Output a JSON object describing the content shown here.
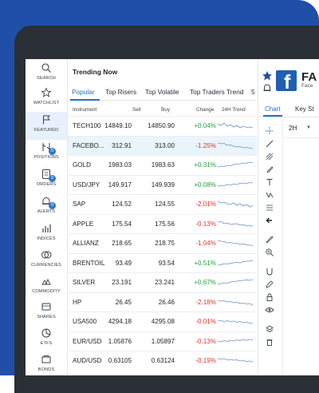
{
  "sidebar": {
    "items": [
      {
        "label": "SEARCH",
        "icon": "search-icon"
      },
      {
        "label": "WATCHLIST",
        "icon": "star-icon"
      },
      {
        "label": "FEATURED",
        "icon": "flag-icon",
        "active": true
      },
      {
        "label": "POSITIONS",
        "icon": "positions-icon",
        "badge": "0"
      },
      {
        "label": "ORDERS",
        "icon": "orders-icon",
        "badge": "0"
      },
      {
        "label": "ALERTS",
        "icon": "bell-icon",
        "badge": "0"
      },
      {
        "label": "INDICES",
        "icon": "indices-icon"
      },
      {
        "label": "CURRENCIES",
        "icon": "currencies-icon"
      },
      {
        "label": "COMMODITY",
        "icon": "commodity-icon"
      },
      {
        "label": "SHARES",
        "icon": "shares-icon"
      },
      {
        "label": "ETFS",
        "icon": "etfs-icon"
      },
      {
        "label": "BONDS",
        "icon": "bonds-icon"
      }
    ]
  },
  "trending": {
    "title": "Trending Now",
    "tabs": [
      "Popular",
      "Top Risers",
      "Top Volatile",
      "Top Traders Trend",
      "5"
    ],
    "active_tab": 0,
    "columns": [
      "Instrument",
      "Sell",
      "Buy",
      "Change",
      "24H Trend"
    ],
    "rows": [
      {
        "name": "TECH100",
        "sell": "14849.10",
        "buy": "14850.90",
        "change": "+0.04%"
      },
      {
        "name": "FACEBO...",
        "sell": "312.91",
        "buy": "313.00",
        "change": "-1.25%"
      },
      {
        "name": "GOLD",
        "sell": "1983.03",
        "buy": "1983.63",
        "change": "+0.31%"
      },
      {
        "name": "USD/JPY",
        "sell": "149.917",
        "buy": "149.939",
        "change": "+0.08%"
      },
      {
        "name": "SAP",
        "sell": "124.52",
        "buy": "124.55",
        "change": "-2.01%"
      },
      {
        "name": "APPLE",
        "sell": "175.54",
        "buy": "175.56",
        "change": "-0.13%"
      },
      {
        "name": "ALLIANZ",
        "sell": "218.65",
        "buy": "218.75",
        "change": "-1.04%"
      },
      {
        "name": "BRENTOIL",
        "sell": "93.49",
        "buy": "93.54",
        "change": "+0.51%"
      },
      {
        "name": "SILVER",
        "sell": "23.191",
        "buy": "23.241",
        "change": "+0.67%"
      },
      {
        "name": "HP",
        "sell": "26.45",
        "buy": "26.46",
        "change": "-2.18%"
      },
      {
        "name": "USA500",
        "sell": "4294.18",
        "buy": "4295.08",
        "change": "-0.01%"
      },
      {
        "name": "EUR/USD",
        "sell": "1.05876",
        "buy": "1.05897",
        "change": "-0.13%"
      },
      {
        "name": "AUD/USD",
        "sell": "0.63105",
        "buy": "0.63124",
        "change": "-0.19%"
      }
    ]
  },
  "chart_panel": {
    "title": "FA",
    "subtitle": "Face",
    "tabs": [
      "Chart",
      "Key St"
    ],
    "timeframe": "2H",
    "logo_letter": "f"
  },
  "colors": {
    "accent": "#1d72c4",
    "positive": "#20a23a",
    "negative": "#e0332f",
    "frame_blue": "#1f4fa8",
    "device": "#2b2f36",
    "facebook": "#1f5fb5"
  }
}
